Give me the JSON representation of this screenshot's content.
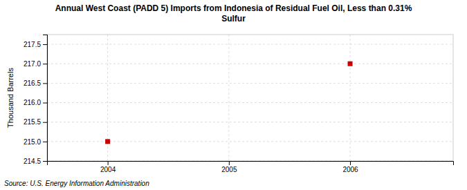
{
  "chart_data": {
    "type": "scatter",
    "title": "Annual West Coast (PADD 5) Imports from Indonesia of Residual Fuel Oil, Less than 0.31%\nSulfur",
    "y_label": "Thousand Barrels",
    "annotations": [
      "Source: U.S. Energy Information Administration"
    ],
    "x": [
      2004,
      2006
    ],
    "values": [
      215.0,
      217.0
    ],
    "color": "#cc0000",
    "marker": "square",
    "xlim": [
      2003.5,
      2006.85
    ],
    "ylim": [
      214.5,
      217.75
    ],
    "xticks": [
      2004,
      2005,
      2006
    ],
    "yticks": [
      214.5,
      {
        "value": 215.0,
        "label": "215.0"
      },
      215.5,
      {
        "value": 216.0,
        "label": "216.0"
      },
      216.5,
      {
        "value": 217.0,
        "label": "217.0"
      },
      217.5
    ],
    "grid": true
  }
}
